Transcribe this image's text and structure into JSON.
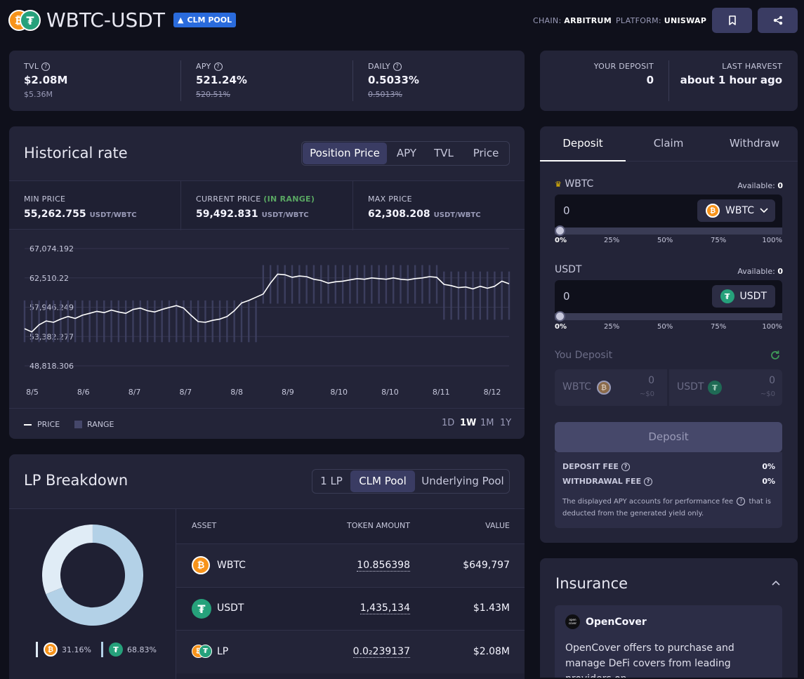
{
  "header": {
    "title": "WBTC-USDT",
    "badge": "CLM POOL",
    "chain_label": "CHAIN:",
    "chain_value": "ARBITRUM",
    "platform_label": "PLATFORM:",
    "platform_value": "UNISWAP"
  },
  "stats": {
    "tvl_label": "TVL",
    "tvl_value": "$2.08M",
    "tvl_sub": "$5.36M",
    "apy_label": "APY",
    "apy_value": "521.24%",
    "apy_sub": "520.51%",
    "daily_label": "DAILY",
    "daily_value": "0.5033%",
    "daily_sub": "0.5013%"
  },
  "deposit_summary": {
    "your_deposit_label": "YOUR DEPOSIT",
    "your_deposit_value": "0",
    "last_harvest_label": "LAST HARVEST",
    "last_harvest_value": "about 1 hour ago"
  },
  "historical": {
    "title": "Historical rate",
    "tabs": [
      "Position Price",
      "APY",
      "TVL",
      "Price"
    ],
    "active_tab": "Position Price",
    "min_label": "MIN PRICE",
    "min_value": "55,262.755",
    "min_unit": "USDT/WBTC",
    "cur_label": "CURRENT PRICE",
    "cur_status": "(IN RANGE)",
    "cur_value": "59,492.831",
    "cur_unit": "USDT/WBTC",
    "max_label": "MAX PRICE",
    "max_value": "62,308.208",
    "max_unit": "USDT/WBTC",
    "legend_price": "PRICE",
    "legend_range": "RANGE",
    "periods": [
      "1D",
      "1W",
      "1M",
      "1Y"
    ],
    "active_period": "1W"
  },
  "chart_data": {
    "type": "line",
    "title": "",
    "xlabel": "",
    "ylabel": "",
    "ylim": [
      48818.306,
      67074.192
    ],
    "y_ticks": [
      "67,074.192",
      "62,510.22",
      "57,946.249",
      "53,382.277",
      "48,818.306"
    ],
    "x_ticks": [
      "8/5",
      "8/6",
      "8/7",
      "8/7",
      "8/8",
      "8/9",
      "8/10",
      "8/10",
      "8/11",
      "8/12"
    ],
    "series": [
      {
        "name": "PRICE",
        "values": [
          54600,
          54100,
          55200,
          55800,
          55600,
          56100,
          56500,
          56200,
          56700,
          57000,
          57300,
          57100,
          57500,
          57200,
          57000,
          57600,
          57800,
          57400,
          57200,
          57600,
          57900,
          58200,
          57800,
          56700,
          55700,
          55600,
          55900,
          56100,
          56500,
          57400,
          58600,
          59000,
          59500,
          60000,
          61700,
          63100,
          63000,
          62600,
          62800,
          62700,
          62300,
          62100,
          61700,
          61900,
          62000,
          62200,
          62400,
          62300,
          62500,
          62400,
          62300,
          62500,
          62300,
          62200,
          62400,
          62500,
          62700,
          62600,
          61500,
          61300,
          61000,
          61100,
          60800,
          61200,
          60900,
          61200,
          62000,
          61600
        ]
      },
      {
        "name": "RANGE",
        "range_segments": [
          {
            "from": 0,
            "to": 33,
            "low": 52500,
            "high": 59000
          },
          {
            "from": 33,
            "to": 58,
            "low": 58500,
            "high": 64500
          },
          {
            "from": 58,
            "to": 68,
            "low": 56000,
            "high": 63500
          }
        ]
      }
    ]
  },
  "lp": {
    "title": "LP Breakdown",
    "tabs": [
      "1 LP",
      "CLM Pool",
      "Underlying Pool"
    ],
    "active_tab": "CLM Pool",
    "col_asset": "ASSET",
    "col_amount": "TOKEN AMOUNT",
    "col_value": "VALUE",
    "rows": [
      {
        "asset": "WBTC",
        "amount": "10.856398",
        "value": "$649,797"
      },
      {
        "asset": "USDT",
        "amount": "1,435,134",
        "value": "$1.43M"
      },
      {
        "asset": "LP",
        "amount": "0.0₂239137",
        "value": "$2.08M"
      }
    ],
    "legend_wbtc": "31.16%",
    "legend_usdt": "68.83%",
    "donut_wbtc_pct": 31.16,
    "donut_usdt_pct": 68.83
  },
  "deposit_panel": {
    "tabs": [
      "Deposit",
      "Claim",
      "Withdraw"
    ],
    "active_tab": "Deposit",
    "wbtc_label": "WBTC",
    "wbtc_available_label": "Available:",
    "wbtc_available": "0",
    "wbtc_input": "0",
    "wbtc_token": "WBTC",
    "usdt_label": "USDT",
    "usdt_available_label": "Available:",
    "usdt_available": "0",
    "usdt_input": "0",
    "usdt_token": "USDT",
    "slider_marks": [
      "0%",
      "25%",
      "50%",
      "75%",
      "100%"
    ],
    "you_deposit_label": "You Deposit",
    "you_wbtc": "WBTC",
    "you_wbtc_amount": "0",
    "you_wbtc_usd": "~$0",
    "you_usdt": "USDT",
    "you_usdt_amount": "0",
    "you_usdt_usd": "~$0",
    "deposit_button": "Deposit",
    "deposit_fee_label": "DEPOSIT FEE",
    "deposit_fee_value": "0%",
    "withdrawal_fee_label": "WITHDRAWAL FEE",
    "withdrawal_fee_value": "0%",
    "note_part1": "The displayed APY accounts for performance fee",
    "note_part2": "that is deducted from the generated yield only."
  },
  "insurance": {
    "title": "Insurance",
    "provider": "OpenCover",
    "logo_text": "open cover",
    "description": "OpenCover offers to purchase and manage DeFi covers from leading providers on"
  },
  "colors": {
    "background": "#0f101b",
    "card": "#232438",
    "accent_blue": "#2a6bdc",
    "in_range_green": "#59a662",
    "btc_orange": "#f7931a",
    "usdt_green": "#26a17b",
    "donut_light": "#b3d1e7",
    "donut_pale": "#e0ecf6"
  },
  "icons": [
    "wbtc-icon",
    "usdt-icon",
    "bookmark-icon",
    "share-icon",
    "help-icon",
    "chevron-down-icon",
    "refresh-icon",
    "chevron-up-icon",
    "opencover-logo"
  ]
}
